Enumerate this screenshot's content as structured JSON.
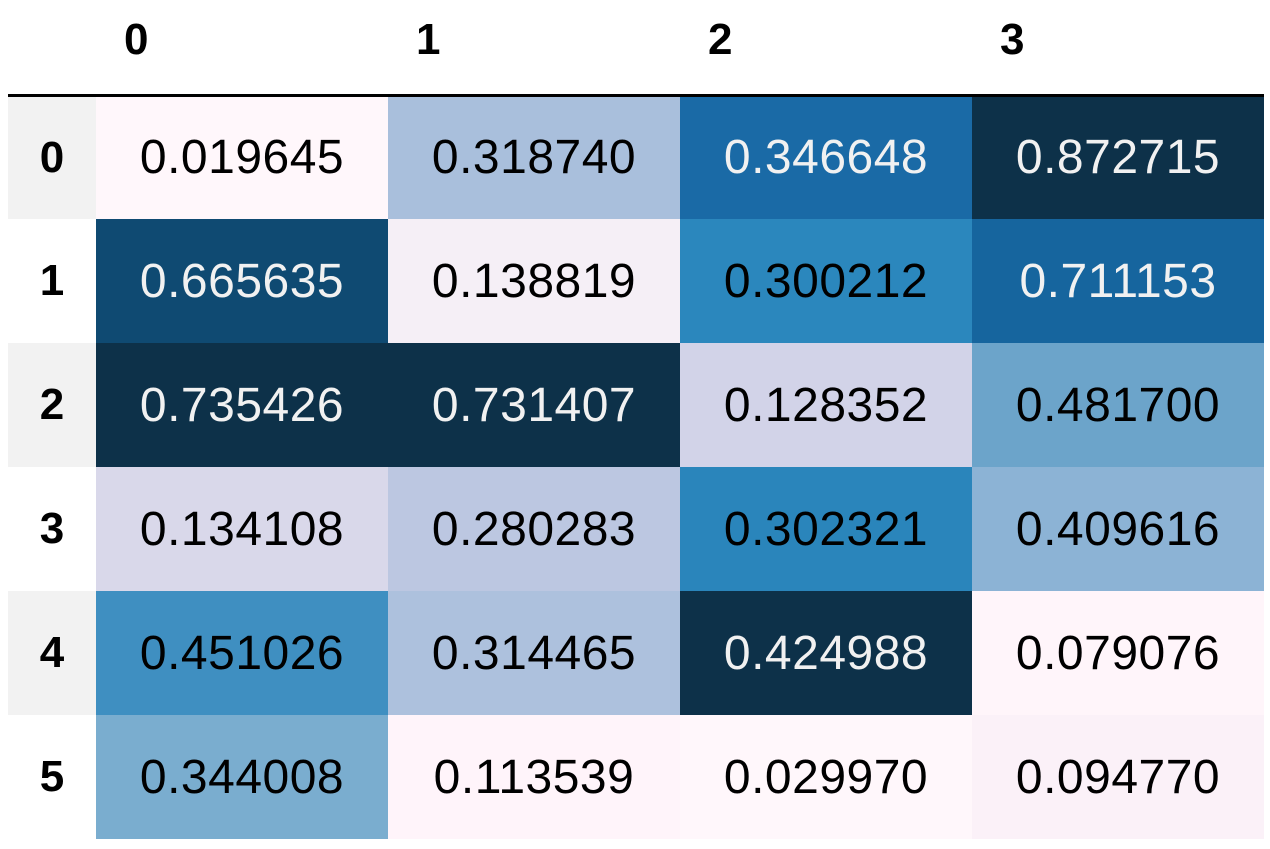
{
  "chart_data": {
    "type": "heatmap",
    "columns": [
      "0",
      "1",
      "2",
      "3"
    ],
    "rows": [
      "0",
      "1",
      "2",
      "3",
      "4",
      "5"
    ],
    "values": [
      [
        "0.019645",
        "0.318740",
        "0.346648",
        "0.872715"
      ],
      [
        "0.665635",
        "0.138819",
        "0.300212",
        "0.711153"
      ],
      [
        "0.735426",
        "0.731407",
        "0.128352",
        "0.481700"
      ],
      [
        "0.134108",
        "0.280283",
        "0.302321",
        "0.409616"
      ],
      [
        "0.451026",
        "0.314465",
        "0.424988",
        "0.079076"
      ],
      [
        "0.344008",
        "0.113539",
        "0.029970",
        "0.094770"
      ]
    ],
    "colormap": "PuBu",
    "color_scale": "per-column",
    "cell_colors": [
      [
        "#fff7fb",
        "#a9bfdc",
        "#1a6aa6",
        "#0d3149"
      ],
      [
        "#0f4a72",
        "#f5eff6",
        "#2b87bd",
        "#16659e"
      ],
      [
        "#0d3149",
        "#0d3149",
        "#d2d3e8",
        "#6ca4ca"
      ],
      [
        "#d9d8ea",
        "#bcc7e1",
        "#2a85bb",
        "#8cb3d5"
      ],
      [
        "#3f8fc1",
        "#adc1dd",
        "#0d3149",
        "#fff5fa"
      ],
      [
        "#7aadcf",
        "#fff4fa",
        "#fff7fb",
        "#fbf1f8"
      ]
    ],
    "text_colors": [
      [
        "#000000",
        "#000000",
        "#f1f1f1",
        "#f1f1f1"
      ],
      [
        "#f1f1f1",
        "#000000",
        "#000000",
        "#f1f1f1"
      ],
      [
        "#f1f1f1",
        "#f1f1f1",
        "#000000",
        "#000000"
      ],
      [
        "#000000",
        "#000000",
        "#000000",
        "#000000"
      ],
      [
        "#000000",
        "#000000",
        "#f1f1f1",
        "#000000"
      ],
      [
        "#000000",
        "#000000",
        "#000000",
        "#000000"
      ]
    ]
  }
}
